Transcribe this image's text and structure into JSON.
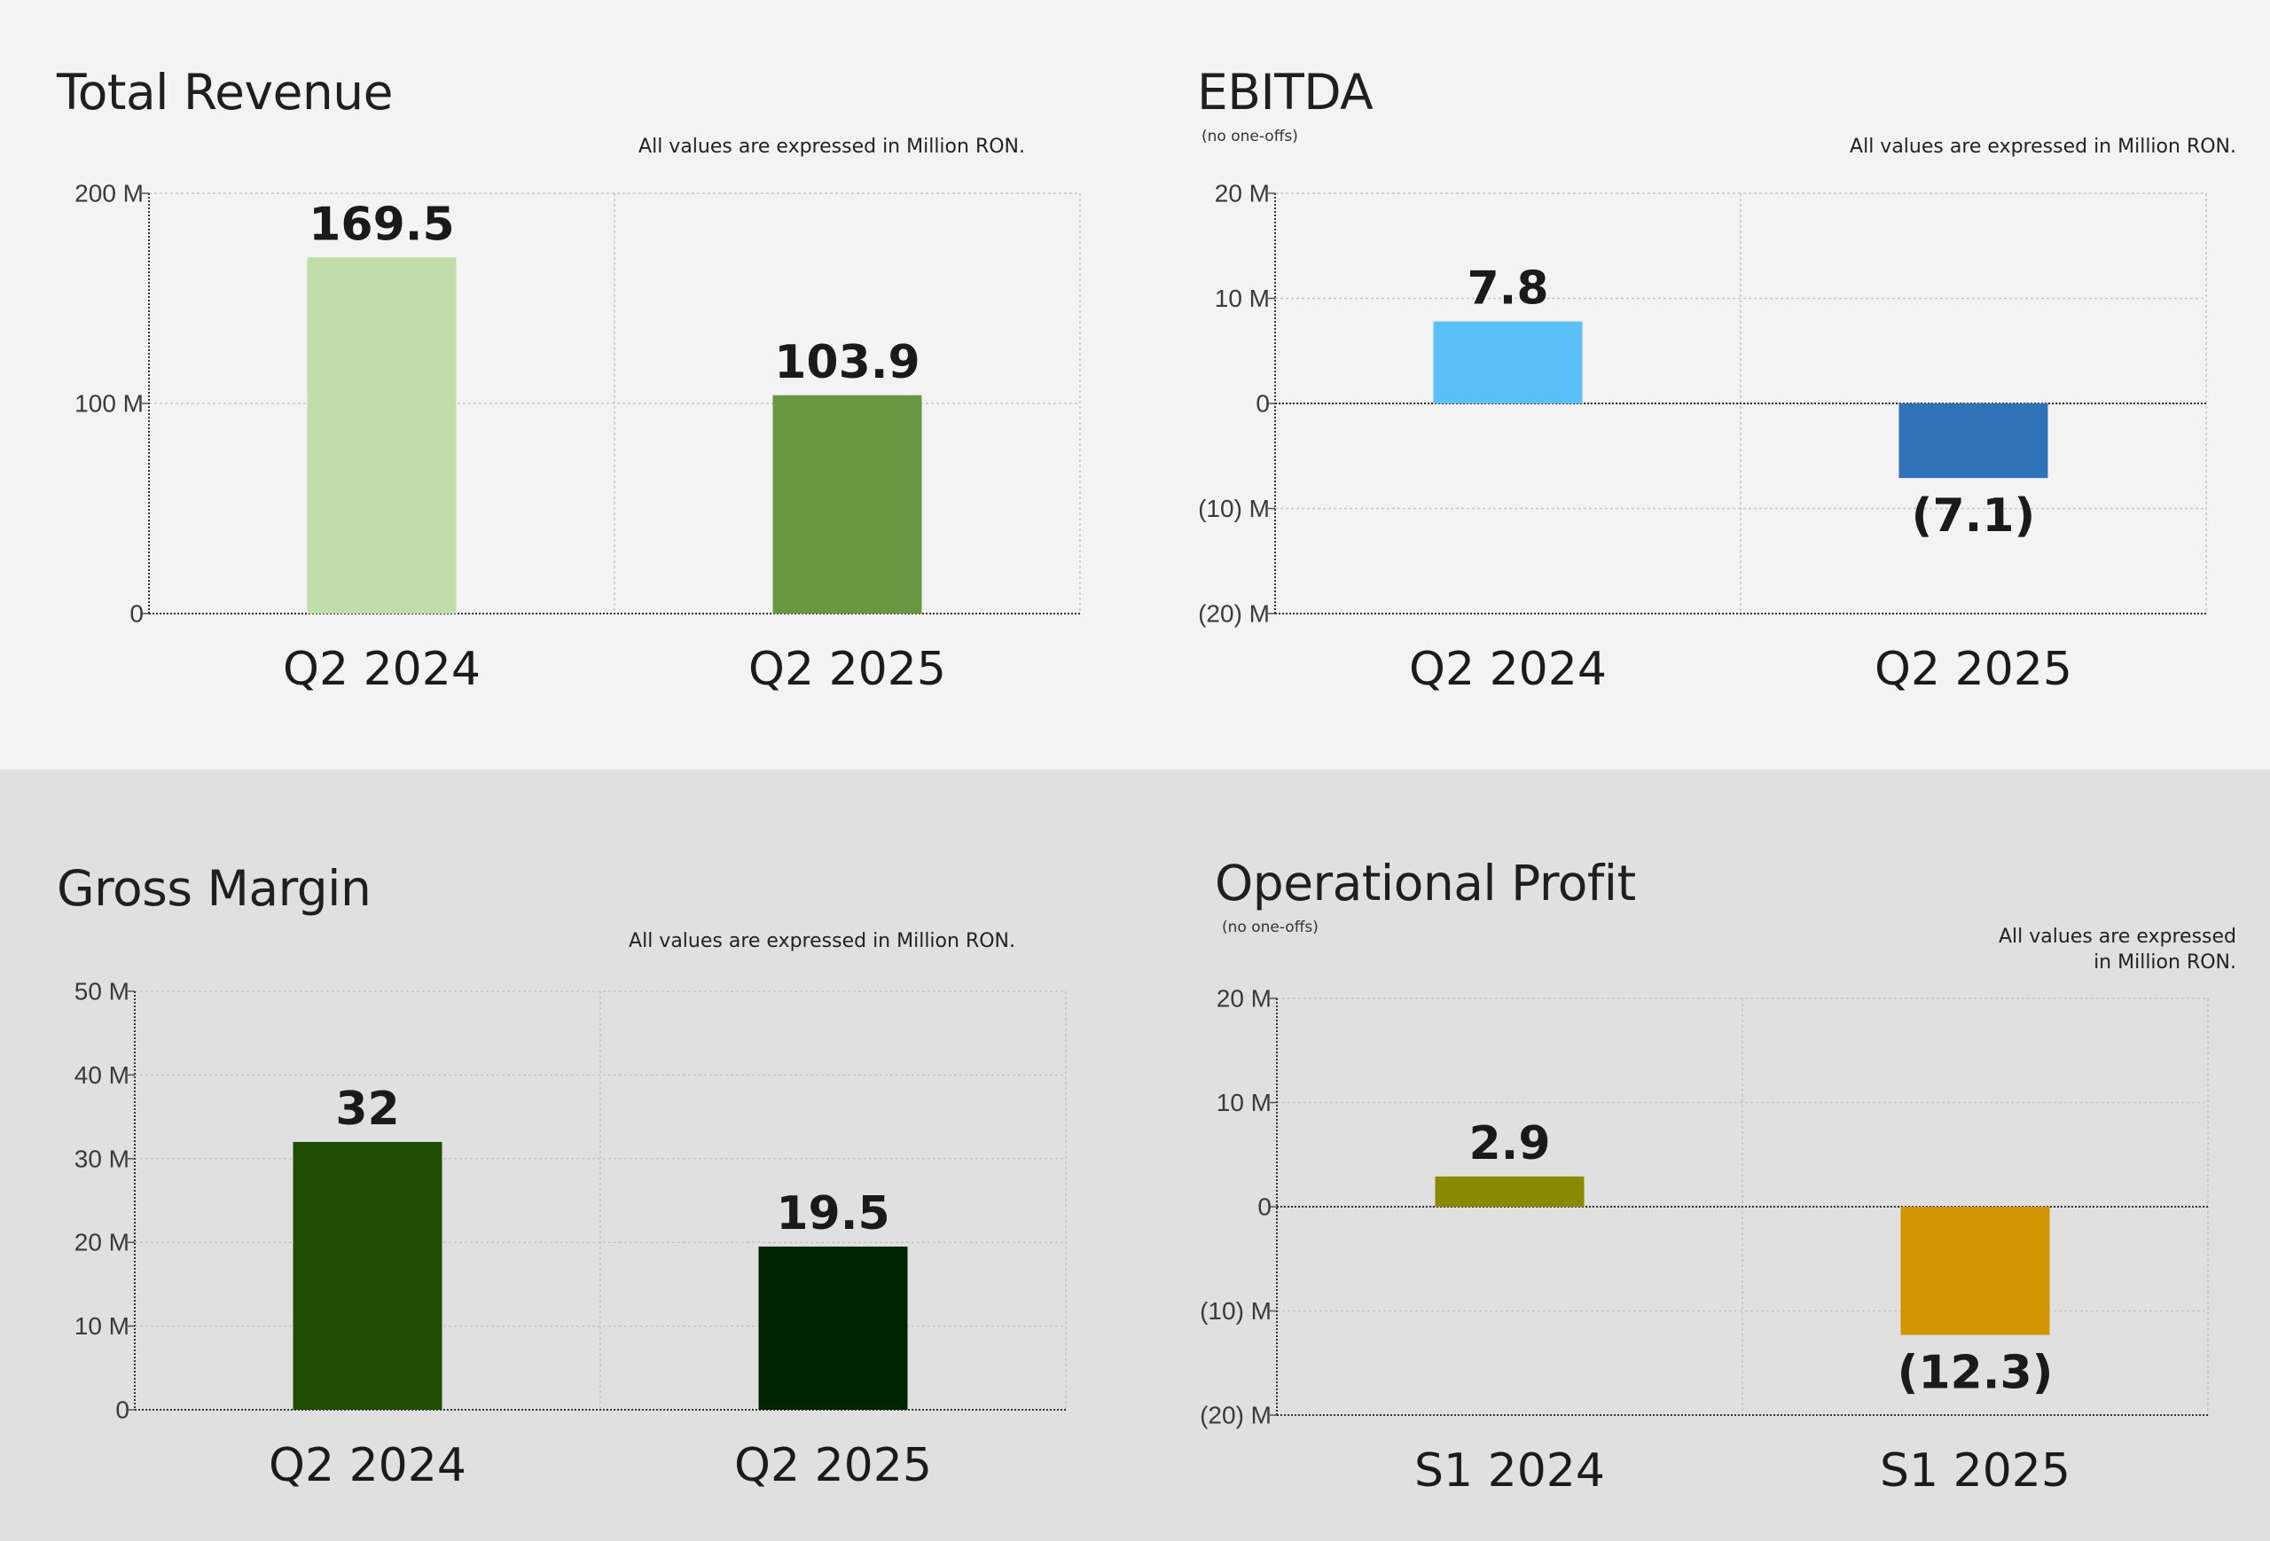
{
  "charts": [
    {
      "title": "Total Revenue",
      "subtitle": "",
      "note_lines": [
        "All values are expressed in Million RON."
      ]
    },
    {
      "title": "EBITDA",
      "subtitle": "(no one-offs)",
      "note_lines": [
        "All values are expressed in Million RON."
      ]
    },
    {
      "title": "Gross Margin",
      "subtitle": "",
      "note_lines": [
        "All values are expressed in Million RON."
      ]
    },
    {
      "title": "Operational Profit",
      "subtitle": "(no one-offs)",
      "note_lines": [
        "All values are expressed",
        "in Million RON."
      ]
    }
  ],
  "chart_data": [
    {
      "type": "bar",
      "title": "Total Revenue",
      "categories": [
        "Q2 2024",
        "Q2 2025"
      ],
      "values": [
        169.5,
        103.9
      ],
      "data_labels": [
        "169.5",
        "103.9"
      ],
      "colors": [
        "#c0dca8",
        "#689641"
      ],
      "ylim": [
        0,
        200
      ],
      "yticks": [
        {
          "v": 0,
          "label": "0"
        },
        {
          "v": 100,
          "label": "100 M"
        },
        {
          "v": 200,
          "label": "200 M"
        }
      ],
      "grid": true
    },
    {
      "type": "bar",
      "title": "EBITDA",
      "subtitle": "(no one-offs)",
      "categories": [
        "Q2 2024",
        "Q2 2025"
      ],
      "values": [
        7.8,
        -7.1
      ],
      "data_labels": [
        "7.8",
        "(7.1)"
      ],
      "colors": [
        "#5bc0f8",
        "#2f72b8"
      ],
      "ylim": [
        -20,
        20
      ],
      "yticks": [
        {
          "v": -20,
          "label": "(20) M"
        },
        {
          "v": -10,
          "label": "(10) M"
        },
        {
          "v": 0,
          "label": "0"
        },
        {
          "v": 10,
          "label": "10 M"
        },
        {
          "v": 20,
          "label": "20 M"
        }
      ],
      "grid": true
    },
    {
      "type": "bar",
      "title": "Gross Margin",
      "categories": [
        "Q2 2024",
        "Q2 2025"
      ],
      "values": [
        32,
        19.5
      ],
      "data_labels": [
        "32",
        "19.5"
      ],
      "colors": [
        "#1e4d03",
        "#002300"
      ],
      "ylim": [
        0,
        50
      ],
      "yticks": [
        {
          "v": 0,
          "label": "0"
        },
        {
          "v": 10,
          "label": "10 M"
        },
        {
          "v": 20,
          "label": "20 M"
        },
        {
          "v": 30,
          "label": "30 M"
        },
        {
          "v": 40,
          "label": "40 M"
        },
        {
          "v": 50,
          "label": "50 M"
        }
      ],
      "grid": true
    },
    {
      "type": "bar",
      "title": "Operational Profit",
      "subtitle": "(no one-offs)",
      "categories": [
        "S1 2024",
        "S1 2025"
      ],
      "values": [
        2.9,
        -12.3
      ],
      "data_labels": [
        "2.9",
        "(12.3)"
      ],
      "colors": [
        "#8a8a00",
        "#d29400"
      ],
      "ylim": [
        -20,
        20
      ],
      "yticks": [
        {
          "v": -20,
          "label": "(20) M"
        },
        {
          "v": -10,
          "label": "(10) M"
        },
        {
          "v": 0,
          "label": "0"
        },
        {
          "v": 10,
          "label": "10 M"
        },
        {
          "v": 20,
          "label": "20 M"
        }
      ],
      "grid": true
    }
  ]
}
